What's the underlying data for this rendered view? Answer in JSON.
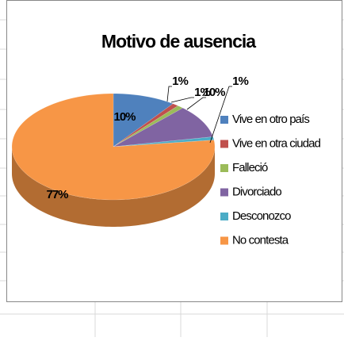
{
  "chart_data": {
    "type": "pie",
    "title": "Motivo de ausencia",
    "categories": [
      "Vive en otro país",
      "Vive en otra ciudad",
      "Falleció",
      "Divorciado",
      "Desconozco",
      "No contesta"
    ],
    "values": [
      10,
      1,
      1,
      10,
      1,
      77
    ],
    "value_labels": [
      "10%",
      "1%",
      "1%",
      "10%",
      "1%",
      "77%"
    ],
    "colors": [
      "#4f81bd",
      "#c0504d",
      "#9bbb59",
      "#8064a2",
      "#4bacc6",
      "#f79646"
    ],
    "legend": "right"
  }
}
